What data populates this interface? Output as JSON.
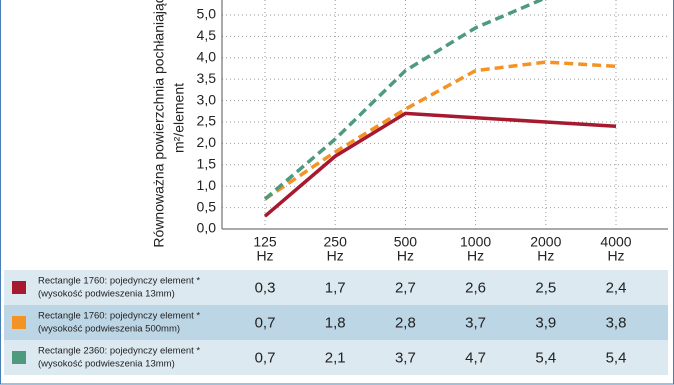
{
  "chart_data": {
    "type": "line",
    "y_label": [
      "Równoważna powierzchnia pochłaniająca",
      "m²/element"
    ],
    "categories": [
      "125",
      "250",
      "500",
      "1000",
      "2000",
      "4000"
    ],
    "x_unit": "Hz",
    "ylim": [
      0,
      5.35
    ],
    "yticks": [
      {
        "value": 0,
        "label": "0,0"
      },
      {
        "value": 0.5,
        "label": "0,5"
      },
      {
        "value": 1,
        "label": "1,0"
      },
      {
        "value": 1.5,
        "label": "1,5"
      },
      {
        "value": 2,
        "label": "2,0"
      },
      {
        "value": 2.5,
        "label": "2,5"
      },
      {
        "value": 3,
        "label": "3,0"
      },
      {
        "value": 3.5,
        "label": "3,5"
      },
      {
        "value": 4,
        "label": "4,0"
      },
      {
        "value": 4.5,
        "label": "4,5"
      },
      {
        "value": 5,
        "label": "5,0"
      }
    ],
    "grid": true,
    "series": [
      {
        "name": "Rectangle 1760: pojedynczy element *",
        "note": "(wysokość podwieszenia 13mm)",
        "color": "#a6192e",
        "line_style": "solid",
        "values": [
          0.3,
          1.7,
          2.7,
          2.6,
          2.5,
          2.4
        ],
        "value_labels": [
          "0,3",
          "1,7",
          "2,7",
          "2,6",
          "2,5",
          "2,4"
        ]
      },
      {
        "name": "Rectangle 1760: pojedynczy element *",
        "note": "(wysokość podwieszenia 500mm)",
        "color": "#f39325",
        "line_style": "dashed",
        "values": [
          0.7,
          1.8,
          2.8,
          3.7,
          3.9,
          3.8
        ],
        "value_labels": [
          "0,7",
          "1,8",
          "2,8",
          "3,7",
          "3,9",
          "3,8"
        ]
      },
      {
        "name": "Rectangle 2360: pojedynczy element *",
        "note": "(wysokość podwieszenia 13mm)",
        "color": "#4e9a7f",
        "line_style": "dashed",
        "values": [
          0.7,
          2.1,
          3.7,
          4.7,
          5.4,
          5.4
        ],
        "value_labels": [
          "0,7",
          "2,1",
          "3,7",
          "4,7",
          "5,4",
          "5,4"
        ]
      }
    ]
  }
}
